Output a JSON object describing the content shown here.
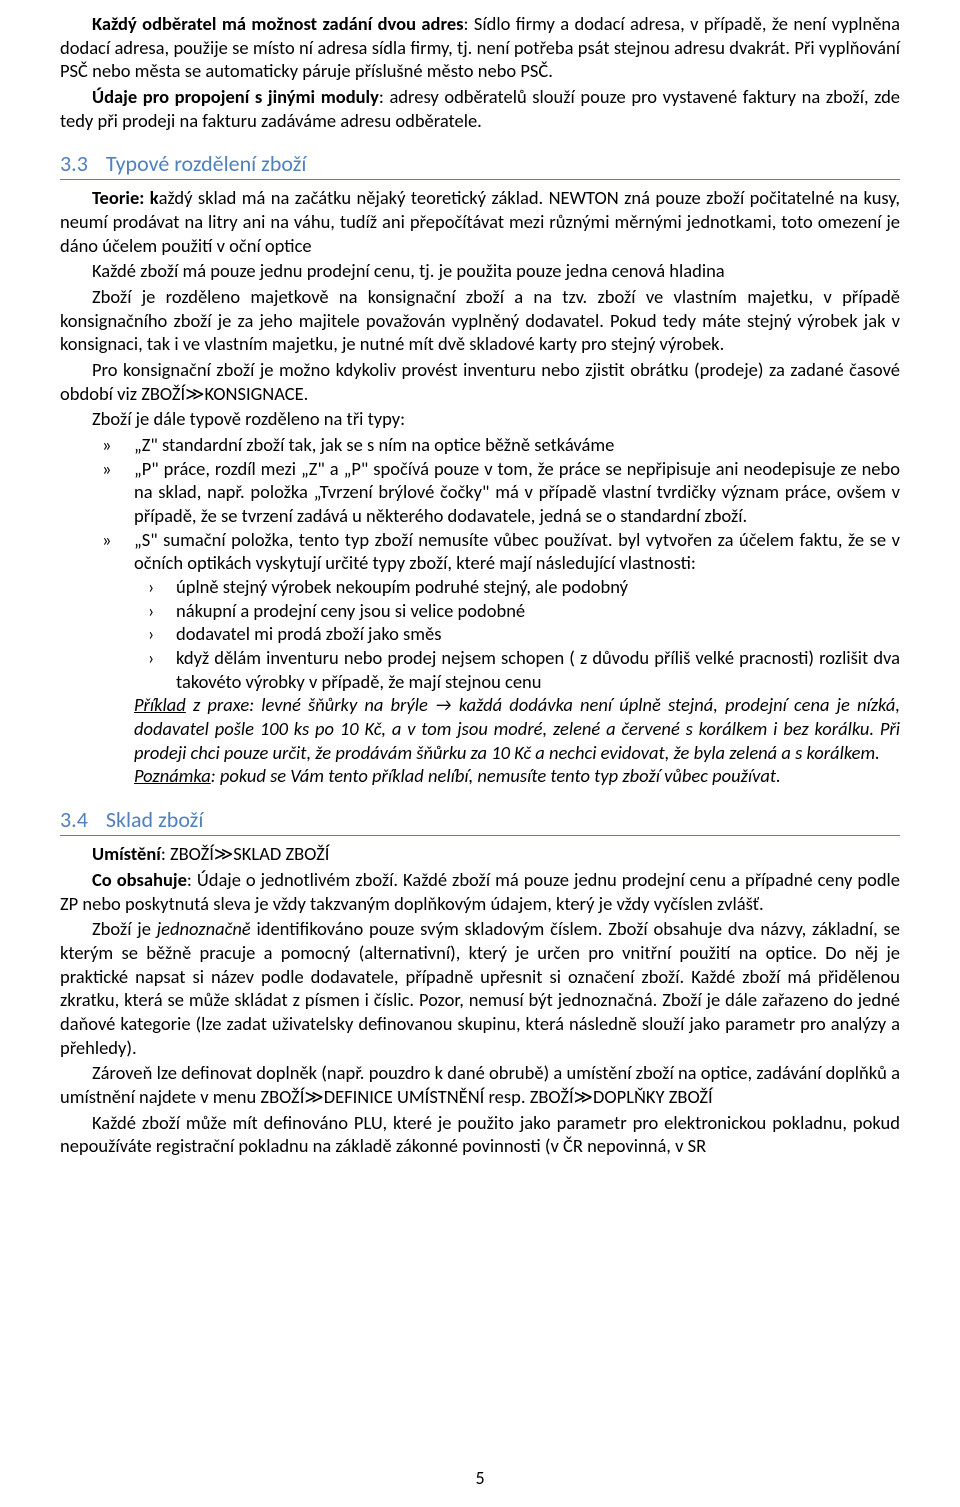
{
  "colors": {
    "text": "#000000",
    "heading": "#4f81bd",
    "heading_border": "#4f81bd",
    "background": "#ffffff"
  },
  "typography": {
    "body_font": "Calibri",
    "body_size_pt": 14,
    "heading_size_pt": 16,
    "line_height": 1.28
  },
  "intro": {
    "p1_pre_bold": "Každý odběratel má možnost zadání dvou adres",
    "p1_rest": ": Sídlo firmy a dodací adresa, v případě, že není vyplněna dodací adresa, použije se místo ní adresa sídla firmy, tj. není potřeba psát stejnou adresu dvakrát. Při vyplňování PSČ nebo města se automaticky páruje příslušné město nebo PSČ.",
    "p2_pre_bold": "Údaje pro propojení s jinými moduly",
    "p2_rest": ": adresy odběratelů slouží pouze pro vystavené faktury na zboží, zde tedy při prodeji na fakturu zadáváme adresu odběratele."
  },
  "section33": {
    "num": "3.3",
    "title": "Typové rozdělení zboží",
    "p1_pre_bold": "Teorie: k",
    "p1_rest": "aždý sklad má na začátku nějaký teoretický základ. NEWTON zná pouze zboží počitatelné na kusy, neumí prodávat na litry ani na váhu, tudíž ani přepočítávat mezi různými měrnými jednotkami, toto omezení je dáno účelem použití v oční optice",
    "p2": "Každé zboží má pouze jednu prodejní cenu, tj. je použita pouze jedna cenová hladina",
    "p3": "Zboží je rozděleno majetkově na konsignační zboží a na tzv. zboží ve vlastním majetku, v případě konsignačního zboží je za jeho majitele považován vyplněný dodavatel. Pokud tedy máte stejný výrobek jak v konsignaci, tak i ve vlastním majetku, je nutné mít dvě skladové karty pro stejný výrobek.",
    "p4": "Pro konsignační zboží je možno kdykoliv provést inventuru nebo zjistit obrátku (prodeje) za zadané časové období viz ZBOŽÍ≫KONSIGNACE.",
    "p5": "Zboží je dále typově rozděleno na tři typy:",
    "bullets": {
      "z": "„Z\" standardní zboží tak, jak se s ním na optice běžně setkáváme",
      "p": "„P\" práce, rozdíl mezi „Z\" a „P\" spočívá pouze v tom, že práce se nepřipisuje ani neodepisuje ze nebo na sklad, např. položka „Tvrzení brýlové čočky\" má v případě vlastní tvrdičky význam práce, ovšem v případě, že se tvrzení zadává u některého dodavatele, jedná se o standardní zboží.",
      "s": "„S\" sumační položka, tento typ zboží nemusíte vůbec používat. byl vytvořen za účelem faktu, že se v očních optikách vyskytují určité typy zboží, které mají následující vlastnosti:"
    },
    "sub_s": [
      "úplně stejný výrobek nekoupím podruhé stejný, ale podobný",
      "nákupní a prodejní ceny jsou si velice podobné",
      "dodavatel mi prodá zboží jako směs",
      "když dělám inventuru nebo prodej nejsem schopen ( z důvodu příliš velké pracnosti) rozlišit dva takovéto výrobky v případě, že mají stejnou cenu"
    ],
    "example_label": "Příklad",
    "example_rest": " z praxe: levné šňůrky na brýle → každá dodávka není úplně stejná, prodejní cena je nízká, dodavatel pošle 100 ks po 10 Kč, a v tom jsou modré, zelené a červené s korálkem i bez korálku. Při prodeji chci pouze určit, že prodávám šňůrku za 10 Kč a nechci evidovat, že byla zelená a s korálkem.",
    "note_label": "Poznámka",
    "note_rest": ": pokud se Vám tento příklad nelíbí, nemusíte tento typ zboží vůbec používat."
  },
  "section34": {
    "num": "3.4",
    "title": "Sklad zboží",
    "p1_pre_bold": "Umístění",
    "p1_rest": ": ZBOŽÍ≫SKLAD ZBOŽÍ",
    "p2_pre_bold": "Co obsahuje",
    "p2_rest": ": Údaje o jednotlivém zboží. Každé zboží má pouze jednu prodejní cenu a případné ceny podle ZP nebo poskytnutá sleva je vždy takzvaným doplňkovým údajem, který je vždy vyčíslen zvlášť.",
    "p3_pre": "Zboží je ",
    "p3_italic": "jednoznačně",
    "p3_rest": " identifikováno pouze svým skladovým číslem. Zboží obsahuje dva názvy, základní, se kterým se běžně pracuje a pomocný (alternativní),  který je určen pro vnitřní použití na optice. Do něj je praktické napsat si název podle dodavatele, případně upřesnit si označení zboží. Každé zboží má přidělenou zkratku, která se může skládat z písmen i číslic. Pozor, nemusí být jednoznačná. Zboží je dále zařazeno do jedné daňové kategorie (lze zadat uživatelsky definovanou skupinu, která následně slouží jako parametr pro analýzy a přehledy).",
    "p4": "Zároveň lze definovat doplněk (např. pouzdro k dané obrubě) a umístění zboží na optice, zadávání doplňků a umístnění najdete v menu ZBOŽÍ≫DEFINICE UMÍSTNĚNÍ resp. ZBOŽÍ≫DOPLŇKY ZBOŽÍ",
    "p5": "Každé zboží může mít definováno PLU, které je použito jako parametr pro elektronickou pokladnu, pokud nepoužíváte registrační pokladnu na základě zákonné povinnosti (v ČR nepovinná, v SR"
  },
  "page_number": "5"
}
